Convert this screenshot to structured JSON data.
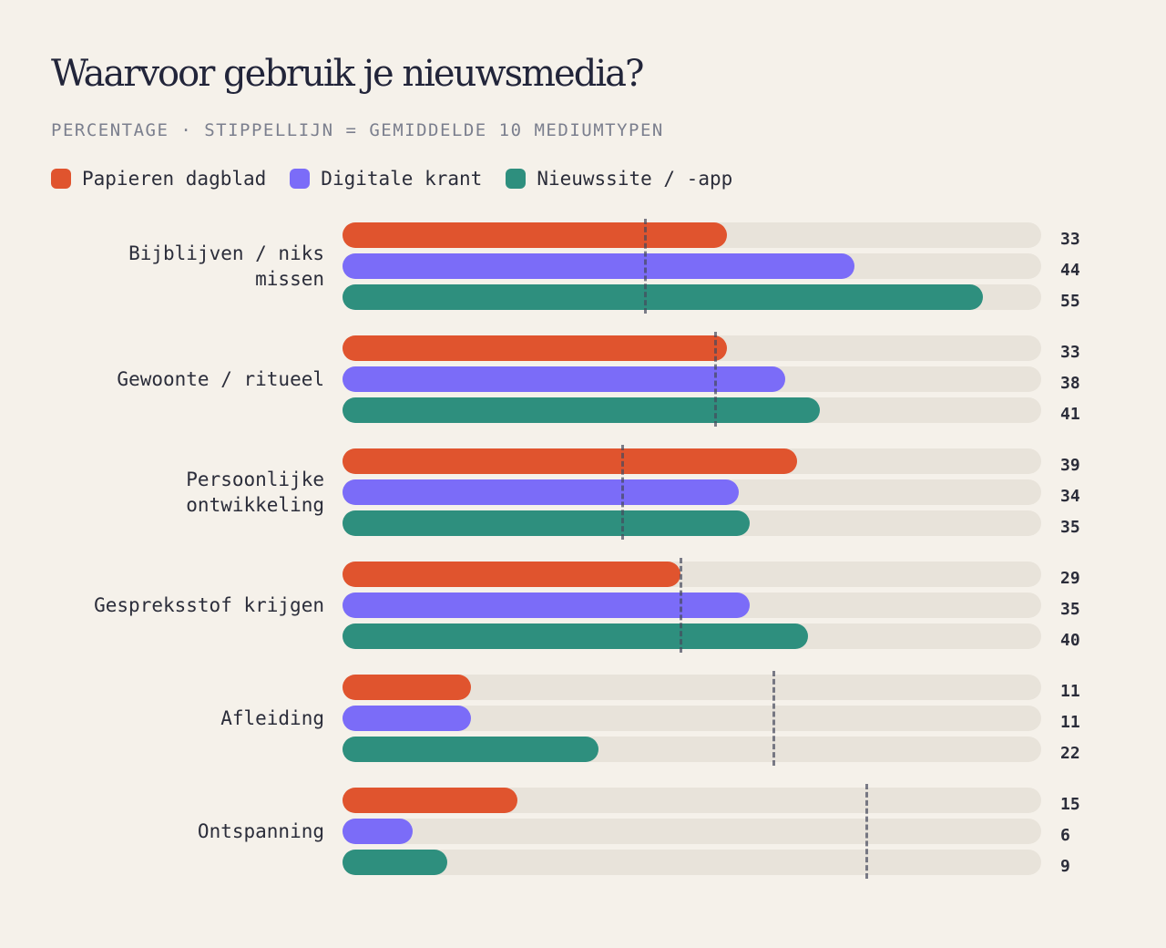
{
  "title": "Waarvoor gebruik je nieuwsmedia?",
  "subtitle": "PERCENTAGE · STIPPELLIJN = GEMIDDELDE 10 MEDIUMTYPEN",
  "colors": {
    "papieren": "#e0542e",
    "digitaal": "#7b6cf8",
    "nieuwssite": "#2e8f7e",
    "track": "#e8e3da"
  },
  "chart_data": {
    "type": "bar",
    "orientation": "horizontal",
    "xlim": [
      0,
      60
    ],
    "categories": [
      [
        "Bijblijven / niks",
        "missen"
      ],
      [
        "Gewoonte / ritueel"
      ],
      [
        "Persoonlijke",
        "ontwikkeling"
      ],
      [
        "Gespreksstof krijgen"
      ],
      [
        "Afleiding"
      ],
      [
        "Ontspanning"
      ]
    ],
    "series": [
      {
        "name": "Papieren dagblad",
        "color": "#e0542e",
        "values": [
          33,
          33,
          39,
          29,
          11,
          15
        ]
      },
      {
        "name": "Digitale krant",
        "color": "#7b6cf8",
        "values": [
          44,
          38,
          34,
          35,
          11,
          6
        ]
      },
      {
        "name": "Nieuwssite / -app",
        "color": "#2e8f7e",
        "values": [
          55,
          41,
          35,
          40,
          22,
          9
        ]
      }
    ],
    "averages": [
      26,
      32,
      24,
      29,
      37,
      45
    ],
    "legend": "top-left"
  }
}
